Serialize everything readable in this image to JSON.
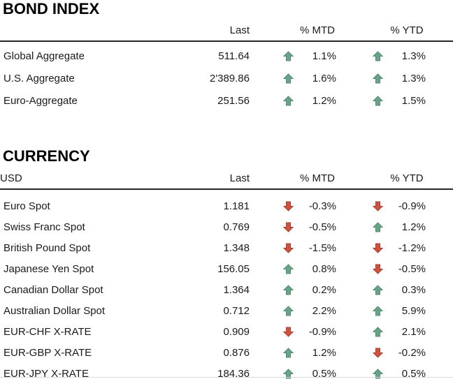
{
  "colors": {
    "up_fill": "#68a287",
    "up_stroke": "#4e8a6d",
    "down_fill": "#cd5240",
    "down_stroke": "#a93c28",
    "rule": "#262626",
    "text": "#1a1a1a"
  },
  "sections": [
    {
      "title": "BOND INDEX",
      "first_col_header": "",
      "columns": [
        "Last",
        "% MTD",
        "% YTD"
      ],
      "rows": [
        {
          "name": "Global Aggregate",
          "last": "511.64",
          "mtd": {
            "dir": "up",
            "value": "1.1%"
          },
          "ytd": {
            "dir": "up",
            "value": "1.3%"
          }
        },
        {
          "name": "U.S. Aggregate",
          "last": "2'389.86",
          "mtd": {
            "dir": "up",
            "value": "1.6%"
          },
          "ytd": {
            "dir": "up",
            "value": "1.3%"
          }
        },
        {
          "name": "Euro-Aggregate",
          "last": "251.56",
          "mtd": {
            "dir": "up",
            "value": "1.2%"
          },
          "ytd": {
            "dir": "up",
            "value": "1.5%"
          }
        }
      ]
    },
    {
      "title": "CURRENCY",
      "first_col_header": "USD",
      "columns": [
        "Last",
        "% MTD",
        "% YTD"
      ],
      "rows": [
        {
          "name": "Euro Spot",
          "last": "1.181",
          "mtd": {
            "dir": "down",
            "value": "-0.3%"
          },
          "ytd": {
            "dir": "down",
            "value": "-0.9%"
          }
        },
        {
          "name": "Swiss Franc Spot",
          "last": "0.769",
          "mtd": {
            "dir": "down",
            "value": "-0.5%"
          },
          "ytd": {
            "dir": "up",
            "value": "1.2%"
          }
        },
        {
          "name": "British Pound Spot",
          "last": "1.348",
          "mtd": {
            "dir": "down",
            "value": "-1.5%"
          },
          "ytd": {
            "dir": "down",
            "value": "-1.2%"
          }
        },
        {
          "name": "Japanese Yen Spot",
          "last": "156.05",
          "mtd": {
            "dir": "up",
            "value": "0.8%"
          },
          "ytd": {
            "dir": "down",
            "value": "-0.5%"
          }
        },
        {
          "name": "Canadian Dollar Spot",
          "last": "1.364",
          "mtd": {
            "dir": "up",
            "value": "0.2%"
          },
          "ytd": {
            "dir": "up",
            "value": "0.3%"
          }
        },
        {
          "name": "Australian Dollar Spot",
          "last": "0.712",
          "mtd": {
            "dir": "up",
            "value": "2.2%"
          },
          "ytd": {
            "dir": "up",
            "value": "5.9%"
          }
        },
        {
          "name": "EUR-CHF X-RATE",
          "last": "0.909",
          "mtd": {
            "dir": "down",
            "value": "-0.9%"
          },
          "ytd": {
            "dir": "up",
            "value": "2.1%"
          }
        },
        {
          "name": "EUR-GBP X-RATE",
          "last": "0.876",
          "mtd": {
            "dir": "up",
            "value": "1.2%"
          },
          "ytd": {
            "dir": "down",
            "value": "-0.2%"
          }
        },
        {
          "name": "EUR-JPY X-RATE",
          "last": "184.36",
          "mtd": {
            "dir": "up",
            "value": "0.5%"
          },
          "ytd": {
            "dir": "up",
            "value": "0.5%"
          }
        }
      ]
    }
  ]
}
